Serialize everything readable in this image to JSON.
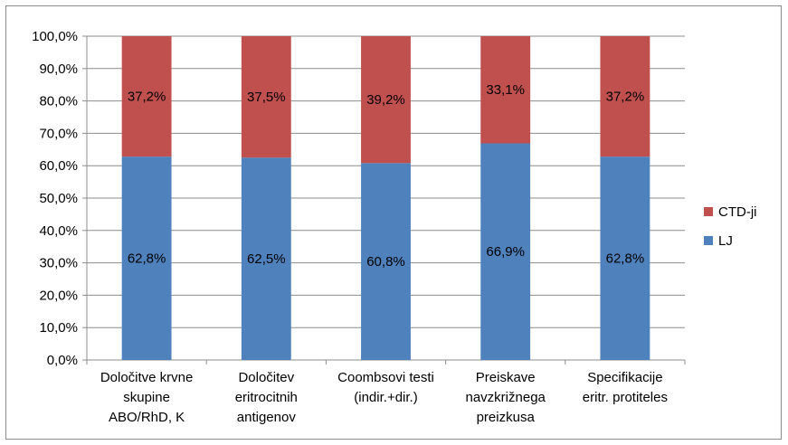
{
  "chart_data": {
    "type": "bar",
    "stacked": true,
    "categories": [
      [
        "Določitve krvne",
        "skupine",
        "ABO/RhD, K"
      ],
      [
        "Določitev",
        "eritrocitnih",
        "antigenov"
      ],
      [
        "Coombsovi testi",
        "(indir.+dir.)"
      ],
      [
        "Preiskave",
        "navzkrižnega",
        "preizkusa"
      ],
      [
        "Specifikacije",
        "eritr. protiteles"
      ]
    ],
    "series": [
      {
        "name": "LJ",
        "color": "#4f81bd",
        "values": [
          62.8,
          62.5,
          60.8,
          66.9,
          62.8
        ],
        "labels": [
          "62,8%",
          "62,5%",
          "60,8%",
          "66,9%",
          "62,8%"
        ]
      },
      {
        "name": "CTD-ji",
        "color": "#c0504d",
        "values": [
          37.2,
          37.5,
          39.2,
          33.1,
          37.2
        ],
        "labels": [
          "37,2%",
          "37,5%",
          "39,2%",
          "33,1%",
          "37,2%"
        ]
      }
    ],
    "yticks": [
      "0,0%",
      "10,0%",
      "20,0%",
      "30,0%",
      "40,0%",
      "50,0%",
      "60,0%",
      "70,0%",
      "80,0%",
      "90,0%",
      "100,0%"
    ],
    "ylim": [
      0,
      100
    ],
    "grid": true,
    "legend": {
      "position": "right",
      "order": [
        "CTD-ji",
        "LJ"
      ]
    }
  }
}
